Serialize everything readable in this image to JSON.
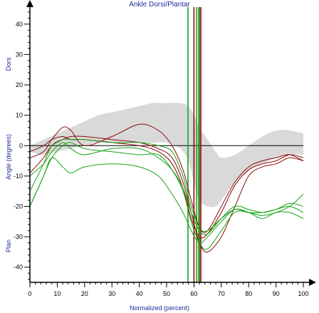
{
  "chart_data": {
    "type": "line",
    "title": "Ankle Dorsi/Plantar",
    "xlabel": "Normalized (percent)",
    "ylabel": "Angle (degrees)",
    "ylabel_top": "Dors",
    "ylabel_bottom": "Plan",
    "xlim": [
      0,
      100
    ],
    "ylim": [
      -45,
      47
    ],
    "xticks": [
      0,
      10,
      20,
      30,
      40,
      50,
      60,
      70,
      80,
      90,
      100
    ],
    "yticks": [
      -40,
      -30,
      -20,
      -10,
      0,
      10,
      20,
      30,
      40
    ],
    "grid": false,
    "colors": {
      "dark_red": "#8b0a0a",
      "green": "#14a514",
      "normal_band": "#d9d9d9",
      "axis_text": "#1f2b9c"
    },
    "normal_band": {
      "x": [
        0,
        5,
        10,
        15,
        20,
        25,
        30,
        35,
        40,
        45,
        50,
        55,
        58,
        60,
        62,
        65,
        68,
        70,
        75,
        80,
        85,
        90,
        95,
        100
      ],
      "upper": [
        0,
        2,
        4,
        6,
        8,
        10,
        11,
        12,
        13,
        14,
        14,
        14,
        13,
        10,
        6,
        2,
        -2,
        -4,
        -3,
        0,
        3,
        5,
        5,
        4
      ],
      "lower": [
        -2,
        -3,
        -2,
        -1,
        0,
        1,
        1,
        1,
        1,
        1,
        1,
        -1,
        -5,
        -12,
        -18,
        -20,
        -20,
        -18,
        -12,
        -8,
        -6,
        -4,
        -3,
        -3
      ]
    },
    "series": [
      {
        "color": "#8b0a0a",
        "x": [
          0,
          5,
          8,
          12,
          15,
          20,
          30,
          40,
          47,
          52,
          56,
          59,
          62,
          65,
          70,
          75,
          80,
          85,
          90,
          95,
          100
        ],
        "y": [
          -4,
          -2,
          2,
          6,
          5,
          0,
          3,
          7,
          5,
          0,
          -8,
          -18,
          -27,
          -28,
          -20,
          -12,
          -7,
          -5,
          -4,
          -3,
          -5
        ]
      },
      {
        "color": "#8b0a0a",
        "x": [
          0,
          5,
          8,
          12,
          15,
          20,
          30,
          40,
          47,
          52,
          56,
          59,
          62,
          65,
          70,
          75,
          80,
          85,
          90,
          95,
          100
        ],
        "y": [
          -2,
          0,
          2,
          3,
          2,
          2,
          1,
          0,
          -2,
          -6,
          -14,
          -24,
          -30,
          -29,
          -22,
          -13,
          -8,
          -6,
          -5,
          -3,
          -4
        ]
      },
      {
        "color": "#8b0a0a",
        "x": [
          0,
          5,
          8,
          12,
          15,
          20,
          30,
          40,
          47,
          52,
          56,
          59,
          62,
          65,
          70,
          75,
          80,
          85,
          90,
          95,
          100
        ],
        "y": [
          -9,
          -4,
          0,
          2,
          3,
          3,
          2,
          1,
          -1,
          -4,
          -12,
          -22,
          -32,
          -35,
          -30,
          -20,
          -10,
          -7,
          -6,
          -4,
          -5
        ]
      },
      {
        "color": "#14a514",
        "x": [
          0,
          5,
          8,
          12,
          15,
          20,
          30,
          40,
          47,
          52,
          56,
          59,
          62,
          65,
          70,
          75,
          80,
          85,
          90,
          95,
          100
        ],
        "y": [
          -20,
          -10,
          -4,
          0,
          1,
          -1,
          -2,
          -3,
          -3,
          -8,
          -15,
          -25,
          -32,
          -34,
          -28,
          -22,
          -22,
          -23,
          -22,
          -20,
          -16
        ]
      },
      {
        "color": "#14a514",
        "x": [
          0,
          5,
          8,
          12,
          15,
          20,
          30,
          40,
          47,
          52,
          56,
          59,
          62,
          65,
          70,
          75,
          80,
          85,
          90,
          95,
          100
        ],
        "y": [
          -20,
          -10,
          -4,
          -7,
          -9,
          -7,
          -6,
          -7,
          -10,
          -16,
          -22,
          -28,
          -32,
          -30,
          -25,
          -21,
          -22,
          -24,
          -22,
          -22,
          -24
        ]
      },
      {
        "color": "#14a514",
        "x": [
          0,
          5,
          8,
          12,
          15,
          20,
          30,
          40,
          47,
          52,
          56,
          59,
          62,
          65,
          70,
          75,
          80,
          85,
          90,
          95,
          100
        ],
        "y": [
          -10,
          -6,
          -2,
          1,
          -1,
          -3,
          -1,
          -1,
          -4,
          -8,
          -14,
          -22,
          -28,
          -29,
          -24,
          -20,
          -21,
          -22,
          -21,
          -19,
          -20
        ]
      },
      {
        "color": "#14a514",
        "x": [
          0,
          5,
          8,
          12,
          15,
          20,
          30,
          40,
          47,
          52,
          56,
          59,
          62,
          65,
          70,
          75,
          80,
          85,
          90,
          95,
          100
        ],
        "y": [
          -15,
          -6,
          0,
          2,
          2,
          2,
          1,
          1,
          0,
          -2,
          -10,
          -20,
          -27,
          -28,
          -24,
          -21,
          -22,
          -22,
          -21,
          -20,
          -22
        ]
      }
    ],
    "events": [
      {
        "x": 57.8,
        "color": "#14a514"
      },
      {
        "x": 60.0,
        "color": "#8b0a0a"
      },
      {
        "x": 61.0,
        "color": "#14a514"
      },
      {
        "x": 61.8,
        "color": "#8b0a0a"
      },
      {
        "x": 62.0,
        "color": "#14a514"
      },
      {
        "x": 62.5,
        "color": "#8b0a0a"
      }
    ]
  }
}
